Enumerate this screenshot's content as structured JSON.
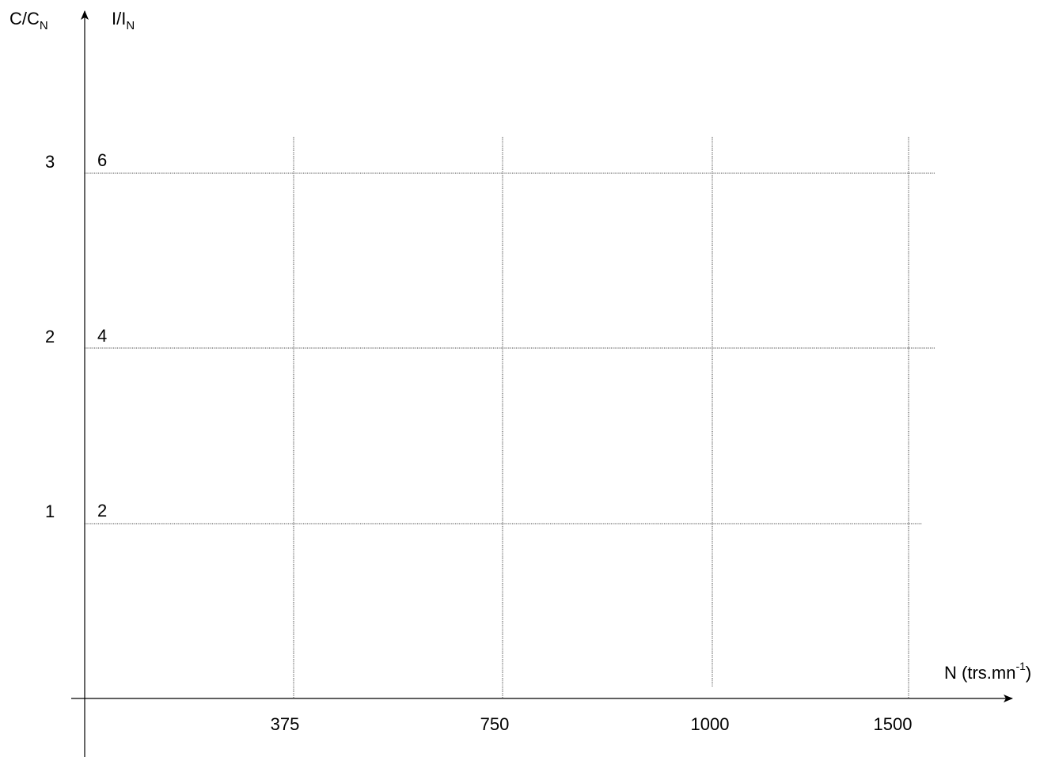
{
  "chart_data": {
    "type": "line",
    "grid": true,
    "xaxis": {
      "label": "N (trs.mn",
      "label_superscript": "-1",
      "label_suffix": ")",
      "ticks": [
        "375",
        "750",
        "1000",
        "1500"
      ]
    },
    "yaxis_left": {
      "label_main": "C/C",
      "label_sub": "N",
      "ticks": [
        "1",
        "2",
        "3"
      ]
    },
    "yaxis_right": {
      "label_main": "I/I",
      "label_sub": "N",
      "ticks": [
        "2",
        "4",
        "6"
      ]
    },
    "series": []
  }
}
